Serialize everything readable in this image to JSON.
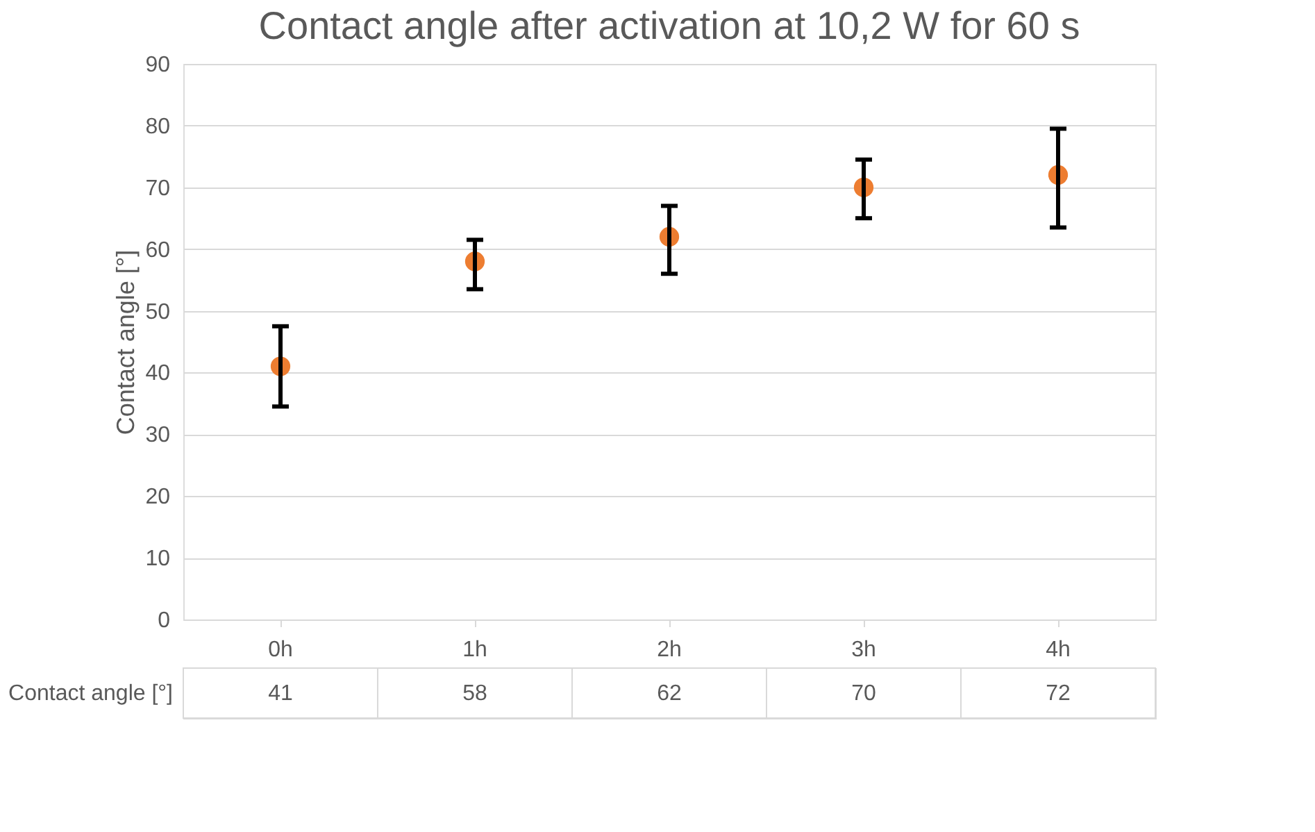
{
  "chart_data": {
    "type": "scatter",
    "title": "Contact angle after activation at 10,2 W for 60 s",
    "ylabel": "Contact angle [°]",
    "categories": [
      "0h",
      "1h",
      "2h",
      "3h",
      "4h"
    ],
    "series": [
      {
        "name": "Contact angle [°]",
        "color": "#ed7d31",
        "values": [
          41,
          58,
          62,
          70,
          72
        ],
        "errors": [
          [
            34.5,
            47.5
          ],
          [
            53.5,
            61.5
          ],
          [
            56,
            67
          ],
          [
            65,
            74.5
          ],
          [
            63.5,
            79.5
          ]
        ]
      }
    ],
    "ylim": [
      0,
      90
    ],
    "yticks": [
      0,
      10,
      20,
      30,
      40,
      50,
      60,
      70,
      80,
      90
    ],
    "grid": "y",
    "marker": "circle",
    "data_labels": true,
    "legend": false
  }
}
